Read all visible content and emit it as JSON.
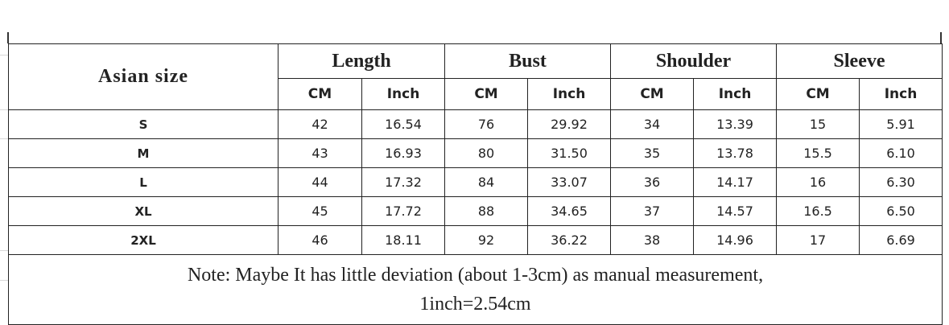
{
  "table": {
    "size_header": "Asian  size",
    "groups": [
      {
        "label": "Length",
        "units": [
          "CM",
          "Inch"
        ]
      },
      {
        "label": "Bust",
        "units": [
          "CM",
          "Inch"
        ]
      },
      {
        "label": "Shoulder",
        "units": [
          "CM",
          "Inch"
        ]
      },
      {
        "label": "Sleeve",
        "units": [
          "CM",
          "Inch"
        ]
      }
    ],
    "rows": [
      {
        "size": "S",
        "values": [
          "42",
          "16.54",
          "76",
          "29.92",
          "34",
          "13.39",
          "15",
          "5.91"
        ]
      },
      {
        "size": "M",
        "values": [
          "43",
          "16.93",
          "80",
          "31.50",
          "35",
          "13.78",
          "15.5",
          "6.10"
        ]
      },
      {
        "size": "L",
        "values": [
          "44",
          "17.32",
          "84",
          "33.07",
          "36",
          "14.17",
          "16",
          "6.30"
        ]
      },
      {
        "size": "XL",
        "values": [
          "45",
          "17.72",
          "88",
          "34.65",
          "37",
          "14.57",
          "16.5",
          "6.50"
        ]
      },
      {
        "size": "2XL",
        "values": [
          "46",
          "18.11",
          "92",
          "36.22",
          "38",
          "14.96",
          "17",
          "6.69"
        ]
      }
    ],
    "note_line1": "Note: Maybe It has little deviation (about 1-3cm) as manual measurement,",
    "note_line2": "1inch=2.54cm"
  }
}
